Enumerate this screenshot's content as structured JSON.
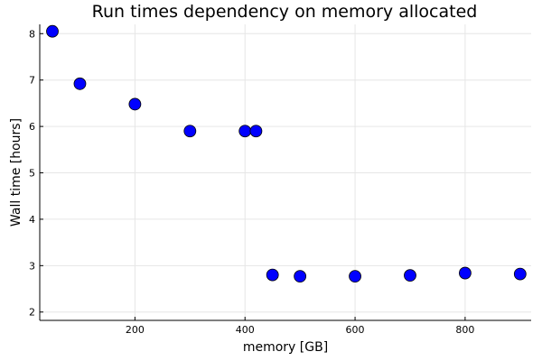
{
  "chart_data": {
    "type": "scatter",
    "title": "Run times dependency on memory allocated",
    "xlabel": "memory [GB]",
    "ylabel": "Wall time [hours]",
    "xlim": [
      27,
      920
    ],
    "ylim": [
      1.82,
      8.2
    ],
    "xticks": [
      200,
      400,
      600,
      800
    ],
    "yticks": [
      2,
      3,
      4,
      5,
      6,
      7,
      8
    ],
    "grid": true,
    "legend": "none",
    "marker_color": "#0000ff",
    "series": [
      {
        "x": [
          50,
          100,
          200,
          300,
          400,
          420,
          450,
          500,
          600,
          700,
          800,
          900
        ],
        "y": [
          8.05,
          6.92,
          6.48,
          5.9,
          5.9,
          5.9,
          2.8,
          2.77,
          2.77,
          2.79,
          2.84,
          2.82
        ]
      }
    ]
  }
}
